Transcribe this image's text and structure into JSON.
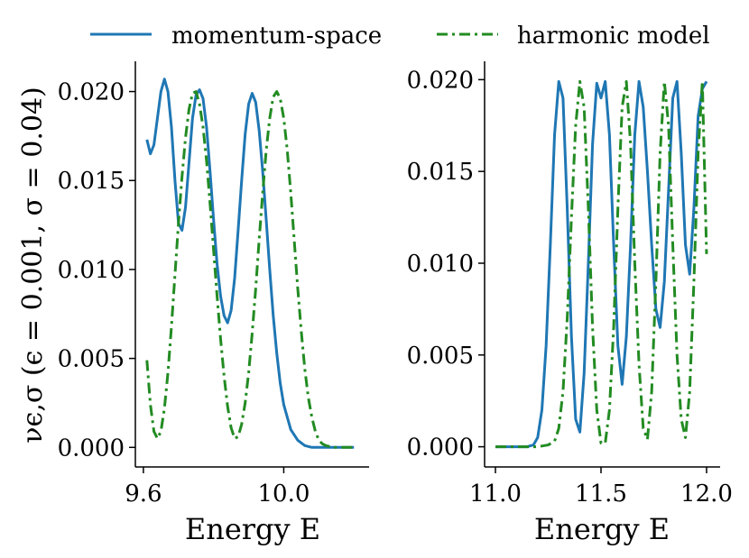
{
  "legend": [
    {
      "label": "momentum-space",
      "color": "#1f77b4",
      "dash": "solid"
    },
    {
      "label": "harmonic model",
      "color": "#228B22",
      "dash": "dashdot"
    }
  ],
  "ylabel": "νϵ,σ (ϵ = 0.001, σ = 0.04)",
  "chart_data": [
    {
      "type": "line",
      "xlabel": "Energy E",
      "xlim": [
        9.59,
        10.22
      ],
      "ylim": [
        -0.0011,
        0.0217
      ],
      "xticks": [
        9.6,
        10.0
      ],
      "xtick_labels": [
        "9.6",
        "10.0"
      ],
      "yticks": [
        0.0,
        0.005,
        0.01,
        0.015,
        0.02
      ],
      "ytick_labels": [
        "0.000",
        "0.005",
        "0.010",
        "0.015",
        "0.020"
      ],
      "series": [
        {
          "name": "momentum-space",
          "x": [
            9.61,
            9.62,
            9.63,
            9.64,
            9.65,
            9.66,
            9.67,
            9.68,
            9.69,
            9.7,
            9.71,
            9.72,
            9.73,
            9.74,
            9.75,
            9.76,
            9.77,
            9.78,
            9.79,
            9.8,
            9.81,
            9.82,
            9.83,
            9.84,
            9.85,
            9.86,
            9.87,
            9.88,
            9.89,
            9.9,
            9.91,
            9.92,
            9.93,
            9.94,
            9.95,
            9.96,
            9.97,
            9.98,
            9.99,
            10.0,
            10.02,
            10.04,
            10.06,
            10.08,
            10.1,
            10.12,
            10.15,
            10.2
          ],
          "y": [
            0.0173,
            0.0165,
            0.017,
            0.0185,
            0.02,
            0.0207,
            0.02,
            0.018,
            0.015,
            0.0126,
            0.0122,
            0.0135,
            0.016,
            0.0185,
            0.0198,
            0.0201,
            0.0196,
            0.018,
            0.0155,
            0.0128,
            0.0103,
            0.0085,
            0.0074,
            0.007,
            0.0077,
            0.0095,
            0.0122,
            0.015,
            0.0176,
            0.0193,
            0.0199,
            0.0194,
            0.0178,
            0.0155,
            0.0128,
            0.01,
            0.0074,
            0.0053,
            0.0036,
            0.0024,
            0.001,
            0.0004,
            0.0001,
            0.0,
            0.0,
            0.0,
            0.0,
            0.0
          ]
        },
        {
          "name": "harmonic model",
          "x": [
            9.61,
            9.62,
            9.63,
            9.64,
            9.65,
            9.66,
            9.67,
            9.68,
            9.69,
            9.7,
            9.71,
            9.72,
            9.73,
            9.74,
            9.75,
            9.76,
            9.77,
            9.78,
            9.79,
            9.8,
            9.81,
            9.82,
            9.83,
            9.84,
            9.85,
            9.86,
            9.87,
            9.88,
            9.89,
            9.9,
            9.91,
            9.92,
            9.93,
            9.94,
            9.95,
            9.96,
            9.97,
            9.98,
            9.99,
            10.0,
            10.01,
            10.02,
            10.03,
            10.04,
            10.05,
            10.06,
            10.07,
            10.08,
            10.09,
            10.1,
            10.11,
            10.12,
            10.14,
            10.16,
            10.2
          ],
          "y": [
            0.0049,
            0.0024,
            0.0009,
            0.0005,
            0.0009,
            0.0022,
            0.0042,
            0.0068,
            0.0097,
            0.0126,
            0.0152,
            0.0174,
            0.019,
            0.0199,
            0.02,
            0.0193,
            0.018,
            0.0161,
            0.0137,
            0.0111,
            0.0085,
            0.0061,
            0.004,
            0.0023,
            0.0011,
            0.0005,
            0.0006,
            0.0013,
            0.0025,
            0.0042,
            0.0064,
            0.0089,
            0.0117,
            0.0143,
            0.0167,
            0.0185,
            0.0197,
            0.02,
            0.0196,
            0.0185,
            0.0167,
            0.0143,
            0.0116,
            0.0089,
            0.0065,
            0.0044,
            0.0028,
            0.0017,
            0.0009,
            0.0004,
            0.0002,
            0.0001,
            0.0,
            0.0,
            0.0
          ]
        }
      ]
    },
    {
      "type": "line",
      "xlabel": "Energy E",
      "xlim": [
        10.97,
        12.03
      ],
      "ylim": [
        -0.0011,
        0.021
      ],
      "xticks": [
        11.0,
        11.5,
        12.0
      ],
      "xtick_labels": [
        "11.0",
        "11.5",
        "12.0"
      ],
      "yticks": [
        0.0,
        0.005,
        0.01,
        0.015,
        0.02
      ],
      "ytick_labels": [
        "0.000",
        "0.005",
        "0.010",
        "0.015",
        "0.020"
      ],
      "series": [
        {
          "name": "momentum-space",
          "x": [
            11.0,
            11.1,
            11.15,
            11.18,
            11.2,
            11.22,
            11.24,
            11.26,
            11.28,
            11.3,
            11.32,
            11.34,
            11.36,
            11.38,
            11.4,
            11.42,
            11.44,
            11.46,
            11.48,
            11.5,
            11.52,
            11.54,
            11.56,
            11.58,
            11.6,
            11.62,
            11.64,
            11.66,
            11.68,
            11.7,
            11.72,
            11.74,
            11.76,
            11.78,
            11.8,
            11.82,
            11.84,
            11.86,
            11.88,
            11.9,
            11.92,
            11.94,
            11.96,
            11.98,
            12.0
          ],
          "y": [
            0.0,
            0.0,
            0.0,
            0.0001,
            0.0005,
            0.002,
            0.0055,
            0.011,
            0.017,
            0.0199,
            0.019,
            0.013,
            0.006,
            0.0015,
            0.0008,
            0.004,
            0.01,
            0.0165,
            0.0198,
            0.019,
            0.0199,
            0.017,
            0.011,
            0.0055,
            0.0034,
            0.006,
            0.011,
            0.017,
            0.0199,
            0.0185,
            0.015,
            0.011,
            0.0075,
            0.0065,
            0.009,
            0.014,
            0.019,
            0.0199,
            0.016,
            0.011,
            0.0094,
            0.013,
            0.018,
            0.0195,
            0.0199
          ]
        },
        {
          "name": "harmonic model",
          "x": [
            11.0,
            11.2,
            11.25,
            11.28,
            11.3,
            11.32,
            11.34,
            11.36,
            11.38,
            11.4,
            11.42,
            11.44,
            11.46,
            11.48,
            11.5,
            11.52,
            11.54,
            11.56,
            11.58,
            11.6,
            11.62,
            11.64,
            11.66,
            11.68,
            11.7,
            11.72,
            11.74,
            11.76,
            11.78,
            11.8,
            11.82,
            11.84,
            11.86,
            11.88,
            11.9,
            11.92,
            11.94,
            11.96,
            11.98,
            12.0
          ],
          "y": [
            0.0,
            0.0,
            0.0001,
            0.0003,
            0.001,
            0.003,
            0.007,
            0.0125,
            0.0175,
            0.0199,
            0.0185,
            0.013,
            0.0065,
            0.002,
            0.0002,
            0.0002,
            0.002,
            0.0065,
            0.013,
            0.0185,
            0.0199,
            0.0165,
            0.01,
            0.0045,
            0.001,
            0.0004,
            0.003,
            0.009,
            0.016,
            0.0199,
            0.0175,
            0.011,
            0.005,
            0.0015,
            0.0005,
            0.003,
            0.009,
            0.016,
            0.0199,
            0.0105
          ]
        }
      ]
    }
  ]
}
